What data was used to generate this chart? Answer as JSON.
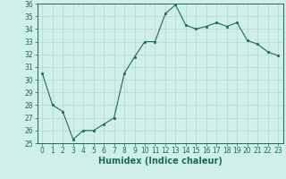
{
  "x": [
    0,
    1,
    2,
    3,
    4,
    5,
    6,
    7,
    8,
    9,
    10,
    11,
    12,
    13,
    14,
    15,
    16,
    17,
    18,
    19,
    20,
    21,
    22,
    23
  ],
  "y": [
    30.5,
    28.0,
    27.5,
    25.3,
    26.0,
    26.0,
    26.5,
    27.0,
    30.5,
    31.8,
    33.0,
    33.0,
    35.2,
    35.9,
    34.3,
    34.0,
    34.2,
    34.5,
    34.2,
    34.5,
    33.1,
    32.8,
    32.2,
    31.9
  ],
  "xlim": [
    -0.5,
    23.5
  ],
  "ylim": [
    25,
    36
  ],
  "yticks": [
    25,
    26,
    27,
    28,
    29,
    30,
    31,
    32,
    33,
    34,
    35,
    36
  ],
  "xticks": [
    0,
    1,
    2,
    3,
    4,
    5,
    6,
    7,
    8,
    9,
    10,
    11,
    12,
    13,
    14,
    15,
    16,
    17,
    18,
    19,
    20,
    21,
    22,
    23
  ],
  "xlabel": "Humidex (Indice chaleur)",
  "line_color": "#1a6b5a",
  "marker_color": "#1a6b5a",
  "bg_color": "#cff0ea",
  "grid_color": "#b0d8d0",
  "tick_label_fontsize": 5.5,
  "xlabel_fontsize": 7
}
